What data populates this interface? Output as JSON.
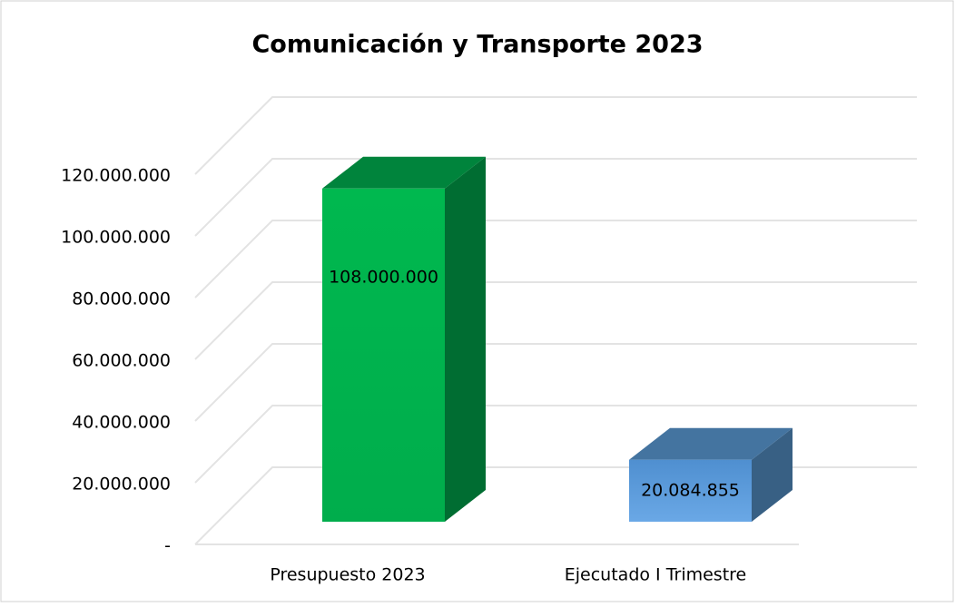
{
  "chart_data": {
    "type": "bar3d",
    "title": "Comunicación y Transporte 2023",
    "categories": [
      "Presupuesto 2023",
      "Ejecutado I Trimestre"
    ],
    "values": [
      108000000,
      20084855
    ],
    "value_labels": [
      "108.000.000",
      "20.084.855"
    ],
    "colors": [
      "#00b050",
      "#5b9bd5"
    ],
    "ylim": [
      0,
      120000000
    ],
    "yticks": [
      {
        "value": 0,
        "label": "-"
      },
      {
        "value": 20000000,
        "label": "20.000.000"
      },
      {
        "value": 40000000,
        "label": "40.000.000"
      },
      {
        "value": 60000000,
        "label": "60.000.000"
      },
      {
        "value": 80000000,
        "label": "80.000.000"
      },
      {
        "value": 100000000,
        "label": "100.000.000"
      },
      {
        "value": 120000000,
        "label": "120.000.000"
      }
    ],
    "grid": true
  }
}
